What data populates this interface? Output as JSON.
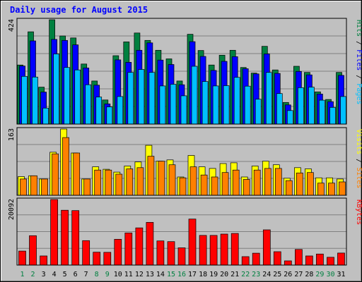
{
  "chart_data": {
    "type": "bar",
    "title": "Daily usage for August 2015",
    "categories": [
      "1",
      "2",
      "3",
      "4",
      "5",
      "6",
      "7",
      "8",
      "9",
      "10",
      "11",
      "12",
      "13",
      "14",
      "15",
      "16",
      "17",
      "18",
      "19",
      "20",
      "21",
      "22",
      "23",
      "24",
      "25",
      "26",
      "27",
      "28",
      "29",
      "30",
      "31"
    ],
    "weekend_days": [
      "1",
      "2",
      "8",
      "9",
      "15",
      "16",
      "22",
      "23",
      "29",
      "30"
    ],
    "panels": [
      {
        "id": "hits-files-pages",
        "max_label": "424",
        "ymax": 424,
        "legend": [
          "Pages",
          "Files",
          "Hits"
        ],
        "series": [
          {
            "name": "Hits",
            "color": "#008040",
            "values": [
              240,
              375,
              150,
              424,
              358,
              350,
              244,
              175,
              98,
              278,
              334,
              370,
              340,
              300,
              265,
              175,
              365,
              299,
              240,
              280,
              300,
              230,
              207,
              316,
              220,
              88,
              235,
              210,
              131,
              100,
              210
            ]
          },
          {
            "name": "Files",
            "color": "#0000ff",
            "values": [
              236,
              338,
              130,
              344,
              340,
              322,
              228,
              158,
              82,
              261,
              251,
              300,
              330,
              260,
              242,
              160,
              335,
              275,
              218,
              255,
              274,
              225,
              204,
              285,
              206,
              78,
              214,
              200,
              122,
              91,
              198
            ]
          },
          {
            "name": "Pages",
            "color": "#00c0ff",
            "values": [
              194,
              191,
              65,
              285,
              230,
              220,
              160,
              110,
              70,
              112,
              210,
              222,
              210,
              155,
              162,
              115,
              235,
              173,
              155,
              156,
              190,
              154,
              101,
              210,
              124,
              55,
              148,
              150,
              97,
              68,
              112
            ]
          }
        ]
      },
      {
        "id": "visits-sites",
        "max_label": "163",
        "ymax": 163,
        "legend": [
          "Sites",
          "Visits"
        ],
        "series": [
          {
            "name": "Visits",
            "color": "#ffff00",
            "values": [
              46,
              48,
              40,
              106,
              163,
              104,
              40,
              70,
              64,
              57,
              72,
              82,
              123,
              84,
              87,
              45,
              98,
              70,
              66,
              78,
              80,
              45,
              72,
              84,
              75,
              42,
              68,
              65,
              43,
              43,
              40
            ]
          },
          {
            "name": "Sites",
            "color": "#ff8000",
            "values": [
              40,
              48,
              40,
              102,
              142,
              104,
              40,
              62,
              62,
              52,
              65,
              68,
              96,
              84,
              75,
              43,
              70,
              50,
              45,
              56,
              62,
              39,
              62,
              66,
              66,
              36,
              55,
              56,
              30,
              30,
              33
            ]
          }
        ]
      },
      {
        "id": "kbytes",
        "max_label": "20092",
        "ymax": 20092,
        "legend": [
          "KBytes"
        ],
        "series": [
          {
            "name": "KBytes",
            "color": "#ff0000",
            "values": [
              4300,
              9000,
              2800,
              20092,
              16800,
              16700,
              7500,
              3950,
              3900,
              7900,
              9850,
              11400,
              13100,
              7400,
              7200,
              5300,
              14100,
              9100,
              9100,
              9500,
              9700,
              2600,
              3650,
              10800,
              4100,
              1300,
              4800,
              2800,
              3400,
              2400,
              3700
            ]
          }
        ]
      }
    ]
  }
}
